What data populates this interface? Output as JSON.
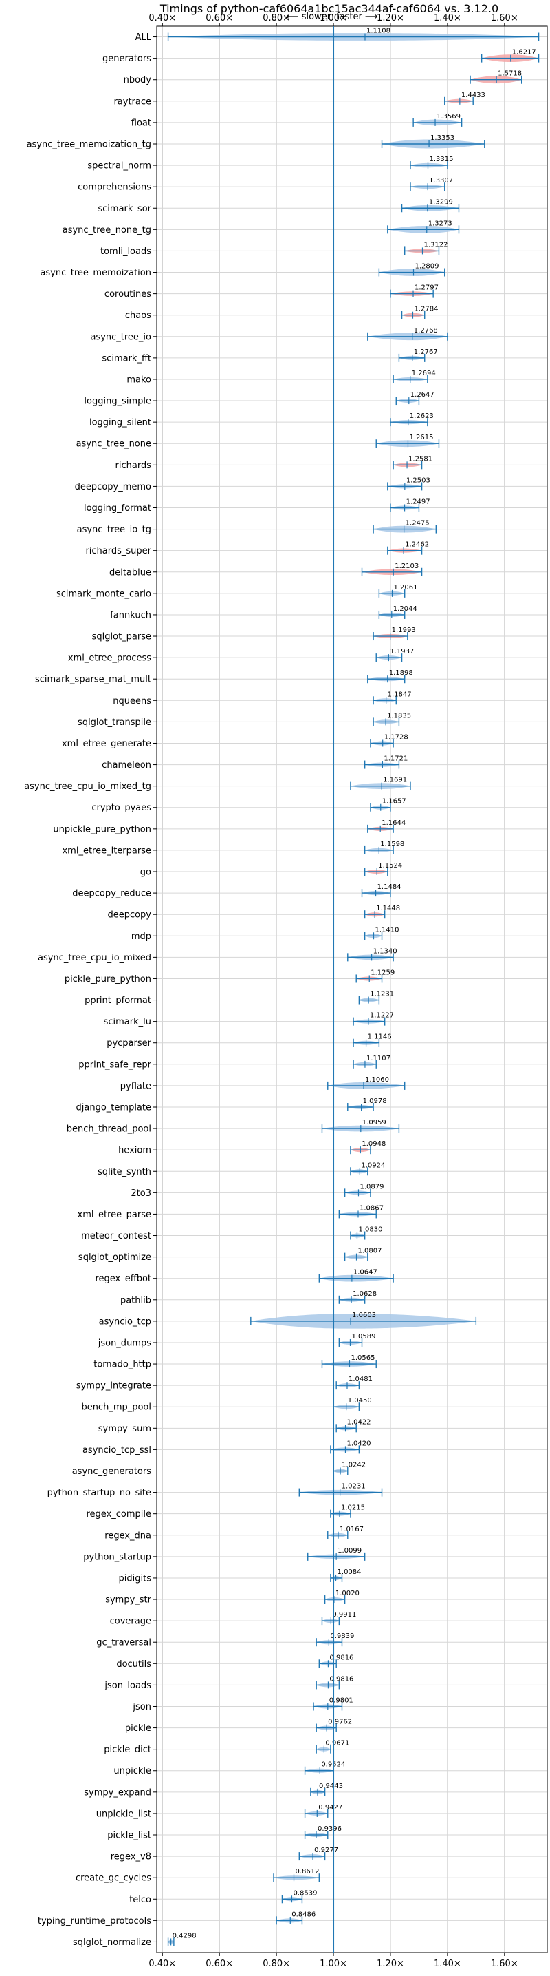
{
  "chart_data": {
    "type": "violin",
    "title": "Timings of python-caf6064a1bc15ac344af-caf6064 vs. 3.12.0",
    "annotation": {
      "slower": "⟵ slower",
      "faster": "faster ⟶"
    },
    "xlim": [
      0.38,
      1.75
    ],
    "reference_value": 1.0,
    "grid": true,
    "xticks": [
      0.4,
      0.6,
      0.8,
      1.0,
      1.2,
      1.4,
      1.6
    ],
    "xtick_labels": [
      "0.40×",
      "0.60×",
      "0.80×",
      "1.00×",
      "1.20×",
      "1.40×",
      "1.60×"
    ],
    "colors": {
      "normal": "#a8c8e8",
      "significant": "#f4a6a6",
      "axis": "#1f77b4"
    },
    "series": [
      {
        "name": "ALL",
        "value": 1.1108,
        "lo": 0.42,
        "hi": 1.72,
        "w": 0.1,
        "hl": false
      },
      {
        "name": "generators",
        "value": 1.6217,
        "lo": 1.52,
        "hi": 1.72,
        "w": 0.1,
        "hl": true
      },
      {
        "name": "nbody",
        "value": 1.5718,
        "lo": 1.48,
        "hi": 1.66,
        "w": 0.1,
        "hl": true
      },
      {
        "name": "raytrace",
        "value": 1.4433,
        "lo": 1.39,
        "hi": 1.49,
        "w": 0.05,
        "hl": true
      },
      {
        "name": "float",
        "value": 1.3569,
        "lo": 1.28,
        "hi": 1.45,
        "w": 0.08,
        "hl": false
      },
      {
        "name": "async_tree_memoization_tg",
        "value": 1.3353,
        "lo": 1.17,
        "hi": 1.53,
        "w": 0.12,
        "hl": false
      },
      {
        "name": "spectral_norm",
        "value": 1.3315,
        "lo": 1.27,
        "hi": 1.4,
        "w": 0.06,
        "hl": false
      },
      {
        "name": "comprehensions",
        "value": 1.3307,
        "lo": 1.27,
        "hi": 1.39,
        "w": 0.05,
        "hl": false
      },
      {
        "name": "scimark_sor",
        "value": 1.3299,
        "lo": 1.24,
        "hi": 1.44,
        "w": 0.08,
        "hl": false
      },
      {
        "name": "async_tree_none_tg",
        "value": 1.3273,
        "lo": 1.19,
        "hi": 1.44,
        "w": 0.1,
        "hl": false
      },
      {
        "name": "tomli_loads",
        "value": 1.3122,
        "lo": 1.25,
        "hi": 1.37,
        "w": 0.05,
        "hl": true
      },
      {
        "name": "async_tree_memoization",
        "value": 1.2809,
        "lo": 1.16,
        "hi": 1.39,
        "w": 0.1,
        "hl": false
      },
      {
        "name": "coroutines",
        "value": 1.2797,
        "lo": 1.2,
        "hi": 1.35,
        "w": 0.06,
        "hl": true
      },
      {
        "name": "chaos",
        "value": 1.2784,
        "lo": 1.24,
        "hi": 1.32,
        "w": 0.04,
        "hl": true
      },
      {
        "name": "async_tree_io",
        "value": 1.2768,
        "lo": 1.12,
        "hi": 1.4,
        "w": 0.1,
        "hl": false
      },
      {
        "name": "scimark_fft",
        "value": 1.2767,
        "lo": 1.23,
        "hi": 1.32,
        "w": 0.04,
        "hl": false
      },
      {
        "name": "mako",
        "value": 1.2694,
        "lo": 1.21,
        "hi": 1.33,
        "w": 0.05,
        "hl": false
      },
      {
        "name": "logging_simple",
        "value": 1.2647,
        "lo": 1.22,
        "hi": 1.3,
        "w": 0.04,
        "hl": false
      },
      {
        "name": "logging_silent",
        "value": 1.2623,
        "lo": 1.2,
        "hi": 1.33,
        "w": 0.05,
        "hl": false
      },
      {
        "name": "async_tree_none",
        "value": 1.2615,
        "lo": 1.15,
        "hi": 1.37,
        "w": 0.09,
        "hl": false
      },
      {
        "name": "richards",
        "value": 1.2581,
        "lo": 1.21,
        "hi": 1.31,
        "w": 0.05,
        "hl": true
      },
      {
        "name": "deepcopy_memo",
        "value": 1.2503,
        "lo": 1.19,
        "hi": 1.31,
        "w": 0.05,
        "hl": false
      },
      {
        "name": "logging_format",
        "value": 1.2497,
        "lo": 1.2,
        "hi": 1.3,
        "w": 0.04,
        "hl": false
      },
      {
        "name": "async_tree_io_tg",
        "value": 1.2475,
        "lo": 1.14,
        "hi": 1.36,
        "w": 0.09,
        "hl": false
      },
      {
        "name": "richards_super",
        "value": 1.2462,
        "lo": 1.19,
        "hi": 1.31,
        "w": 0.05,
        "hl": true
      },
      {
        "name": "deltablue",
        "value": 1.2103,
        "lo": 1.1,
        "hi": 1.31,
        "w": 0.08,
        "hl": true
      },
      {
        "name": "scimark_monte_carlo",
        "value": 1.2061,
        "lo": 1.16,
        "hi": 1.25,
        "w": 0.04,
        "hl": false
      },
      {
        "name": "fannkuch",
        "value": 1.2044,
        "lo": 1.16,
        "hi": 1.25,
        "w": 0.04,
        "hl": false
      },
      {
        "name": "sqlglot_parse",
        "value": 1.1993,
        "lo": 1.14,
        "hi": 1.26,
        "w": 0.05,
        "hl": true
      },
      {
        "name": "xml_etree_process",
        "value": 1.1937,
        "lo": 1.15,
        "hi": 1.24,
        "w": 0.04,
        "hl": false
      },
      {
        "name": "scimark_sparse_mat_mult",
        "value": 1.1898,
        "lo": 1.12,
        "hi": 1.25,
        "w": 0.05,
        "hl": false
      },
      {
        "name": "nqueens",
        "value": 1.1847,
        "lo": 1.14,
        "hi": 1.22,
        "w": 0.035,
        "hl": false
      },
      {
        "name": "sqlglot_transpile",
        "value": 1.1835,
        "lo": 1.14,
        "hi": 1.23,
        "w": 0.04,
        "hl": false
      },
      {
        "name": "xml_etree_generate",
        "value": 1.1728,
        "lo": 1.13,
        "hi": 1.21,
        "w": 0.035,
        "hl": false
      },
      {
        "name": "chameleon",
        "value": 1.1721,
        "lo": 1.11,
        "hi": 1.23,
        "w": 0.05,
        "hl": false
      },
      {
        "name": "async_tree_cpu_io_mixed_tg",
        "value": 1.1691,
        "lo": 1.06,
        "hi": 1.27,
        "w": 0.08,
        "hl": false
      },
      {
        "name": "crypto_pyaes",
        "value": 1.1657,
        "lo": 1.13,
        "hi": 1.2,
        "w": 0.03,
        "hl": false
      },
      {
        "name": "unpickle_pure_python",
        "value": 1.1644,
        "lo": 1.12,
        "hi": 1.21,
        "w": 0.035,
        "hl": true
      },
      {
        "name": "xml_etree_iterparse",
        "value": 1.1598,
        "lo": 1.11,
        "hi": 1.21,
        "w": 0.04,
        "hl": false
      },
      {
        "name": "go",
        "value": 1.1524,
        "lo": 1.11,
        "hi": 1.19,
        "w": 0.035,
        "hl": true
      },
      {
        "name": "deepcopy_reduce",
        "value": 1.1484,
        "lo": 1.1,
        "hi": 1.2,
        "w": 0.04,
        "hl": false
      },
      {
        "name": "deepcopy",
        "value": 1.1448,
        "lo": 1.11,
        "hi": 1.18,
        "w": 0.03,
        "hl": true
      },
      {
        "name": "mdp",
        "value": 1.141,
        "lo": 1.11,
        "hi": 1.17,
        "w": 0.03,
        "hl": false
      },
      {
        "name": "async_tree_cpu_io_mixed",
        "value": 1.134,
        "lo": 1.05,
        "hi": 1.21,
        "w": 0.07,
        "hl": false
      },
      {
        "name": "pickle_pure_python",
        "value": 1.1259,
        "lo": 1.08,
        "hi": 1.17,
        "w": 0.04,
        "hl": true
      },
      {
        "name": "pprint_pformat",
        "value": 1.1231,
        "lo": 1.09,
        "hi": 1.16,
        "w": 0.03,
        "hl": false
      },
      {
        "name": "scimark_lu",
        "value": 1.1227,
        "lo": 1.07,
        "hi": 1.18,
        "w": 0.045,
        "hl": false
      },
      {
        "name": "pycparser",
        "value": 1.1146,
        "lo": 1.07,
        "hi": 1.16,
        "w": 0.04,
        "hl": false
      },
      {
        "name": "pprint_safe_repr",
        "value": 1.1107,
        "lo": 1.07,
        "hi": 1.15,
        "w": 0.035,
        "hl": false
      },
      {
        "name": "pyflate",
        "value": 1.106,
        "lo": 0.98,
        "hi": 1.25,
        "w": 0.09,
        "hl": false
      },
      {
        "name": "django_template",
        "value": 1.0978,
        "lo": 1.05,
        "hi": 1.14,
        "w": 0.035,
        "hl": false
      },
      {
        "name": "bench_thread_pool",
        "value": 1.0959,
        "lo": 0.96,
        "hi": 1.23,
        "w": 0.08,
        "hl": false
      },
      {
        "name": "hexiom",
        "value": 1.0948,
        "lo": 1.06,
        "hi": 1.13,
        "w": 0.03,
        "hl": true
      },
      {
        "name": "sqlite_synth",
        "value": 1.0924,
        "lo": 1.06,
        "hi": 1.12,
        "w": 0.025,
        "hl": false
      },
      {
        "name": "2to3",
        "value": 1.0879,
        "lo": 1.04,
        "hi": 1.13,
        "w": 0.035,
        "hl": false
      },
      {
        "name": "xml_etree_parse",
        "value": 1.0867,
        "lo": 1.02,
        "hi": 1.15,
        "w": 0.05,
        "hl": false
      },
      {
        "name": "meteor_contest",
        "value": 1.083,
        "lo": 1.06,
        "hi": 1.11,
        "w": 0.025,
        "hl": false
      },
      {
        "name": "sqlglot_optimize",
        "value": 1.0807,
        "lo": 1.04,
        "hi": 1.12,
        "w": 0.035,
        "hl": false
      },
      {
        "name": "regex_effbot",
        "value": 1.0647,
        "lo": 0.95,
        "hi": 1.21,
        "w": 0.09,
        "hl": false
      },
      {
        "name": "pathlib",
        "value": 1.0628,
        "lo": 1.02,
        "hi": 1.11,
        "w": 0.035,
        "hl": false
      },
      {
        "name": "asyncio_tcp",
        "value": 1.0603,
        "lo": 0.71,
        "hi": 1.5,
        "w": 0.2,
        "hl": false
      },
      {
        "name": "json_dumps",
        "value": 1.0589,
        "lo": 1.02,
        "hi": 1.1,
        "w": 0.035,
        "hl": false
      },
      {
        "name": "tornado_http",
        "value": 1.0565,
        "lo": 0.96,
        "hi": 1.15,
        "w": 0.07,
        "hl": false
      },
      {
        "name": "sympy_integrate",
        "value": 1.0481,
        "lo": 1.01,
        "hi": 1.09,
        "w": 0.03,
        "hl": false
      },
      {
        "name": "bench_mp_pool",
        "value": 1.045,
        "lo": 1.0,
        "hi": 1.09,
        "w": 0.035,
        "hl": false
      },
      {
        "name": "sympy_sum",
        "value": 1.0422,
        "lo": 1.01,
        "hi": 1.08,
        "w": 0.03,
        "hl": false
      },
      {
        "name": "asyncio_tcp_ssl",
        "value": 1.042,
        "lo": 0.99,
        "hi": 1.09,
        "w": 0.035,
        "hl": false
      },
      {
        "name": "async_generators",
        "value": 1.0242,
        "lo": 1.0,
        "hi": 1.05,
        "w": 0.02,
        "hl": false
      },
      {
        "name": "python_startup_no_site",
        "value": 1.0231,
        "lo": 0.88,
        "hi": 1.17,
        "w": 0.07,
        "hl": false
      },
      {
        "name": "regex_compile",
        "value": 1.0215,
        "lo": 0.99,
        "hi": 1.06,
        "w": 0.03,
        "hl": false
      },
      {
        "name": "regex_dna",
        "value": 1.0167,
        "lo": 0.98,
        "hi": 1.05,
        "w": 0.03,
        "hl": false
      },
      {
        "name": "python_startup",
        "value": 1.0099,
        "lo": 0.91,
        "hi": 1.11,
        "w": 0.06,
        "hl": false
      },
      {
        "name": "pidigits",
        "value": 1.0084,
        "lo": 0.99,
        "hi": 1.03,
        "w": 0.02,
        "hl": false
      },
      {
        "name": "sympy_str",
        "value": 1.002,
        "lo": 0.97,
        "hi": 1.04,
        "w": 0.025,
        "hl": false
      },
      {
        "name": "coverage",
        "value": 0.9911,
        "lo": 0.96,
        "hi": 1.02,
        "w": 0.025,
        "hl": false
      },
      {
        "name": "gc_traversal",
        "value": 0.9839,
        "lo": 0.94,
        "hi": 1.03,
        "w": 0.035,
        "hl": false
      },
      {
        "name": "docutils",
        "value": 0.9816,
        "lo": 0.95,
        "hi": 1.01,
        "w": 0.025,
        "hl": false
      },
      {
        "name": "json_loads",
        "value": 0.9816,
        "lo": 0.94,
        "hi": 1.02,
        "w": 0.03,
        "hl": false
      },
      {
        "name": "json",
        "value": 0.9801,
        "lo": 0.93,
        "hi": 1.03,
        "w": 0.035,
        "hl": false
      },
      {
        "name": "pickle",
        "value": 0.9762,
        "lo": 0.94,
        "hi": 1.01,
        "w": 0.03,
        "hl": false
      },
      {
        "name": "pickle_dict",
        "value": 0.9671,
        "lo": 0.94,
        "hi": 0.99,
        "w": 0.02,
        "hl": false
      },
      {
        "name": "unpickle",
        "value": 0.9524,
        "lo": 0.9,
        "hi": 1.0,
        "w": 0.035,
        "hl": false
      },
      {
        "name": "sympy_expand",
        "value": 0.9443,
        "lo": 0.92,
        "hi": 0.97,
        "w": 0.025,
        "hl": false
      },
      {
        "name": "unpickle_list",
        "value": 0.9427,
        "lo": 0.9,
        "hi": 0.98,
        "w": 0.03,
        "hl": false
      },
      {
        "name": "pickle_list",
        "value": 0.9396,
        "lo": 0.9,
        "hi": 0.98,
        "w": 0.03,
        "hl": false
      },
      {
        "name": "regex_v8",
        "value": 0.9277,
        "lo": 0.88,
        "hi": 0.97,
        "w": 0.035,
        "hl": false
      },
      {
        "name": "create_gc_cycles",
        "value": 0.8612,
        "lo": 0.79,
        "hi": 0.95,
        "w": 0.05,
        "hl": false
      },
      {
        "name": "telco",
        "value": 0.8539,
        "lo": 0.82,
        "hi": 0.89,
        "w": 0.025,
        "hl": false
      },
      {
        "name": "typing_runtime_protocols",
        "value": 0.8486,
        "lo": 0.8,
        "hi": 0.89,
        "w": 0.03,
        "hl": false
      },
      {
        "name": "sqlglot_normalize",
        "value": 0.4298,
        "lo": 0.42,
        "hi": 0.44,
        "w": 0.01,
        "hl": false
      }
    ]
  }
}
